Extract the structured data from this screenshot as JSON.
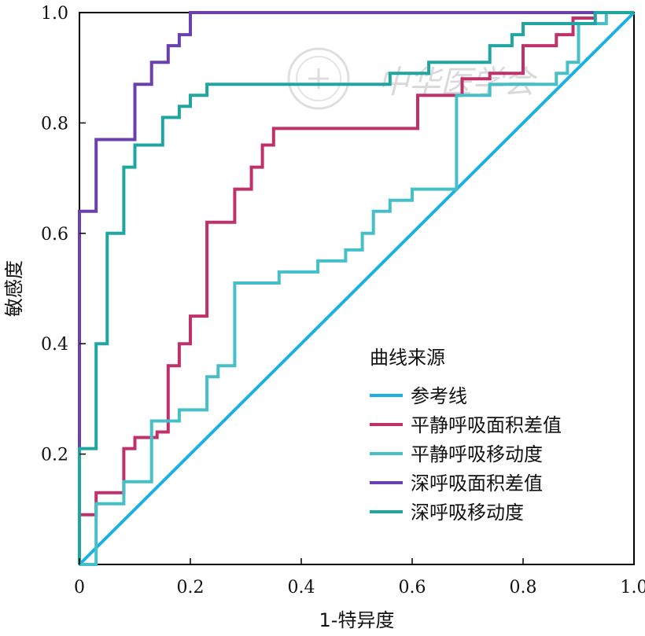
{
  "chart_data": {
    "type": "line",
    "xlabel": "1-特异度",
    "ylabel": "敏感度",
    "xlim": [
      0,
      1
    ],
    "ylim": [
      0,
      1
    ],
    "x_ticks": [
      0,
      0.2,
      0.4,
      0.6,
      0.8,
      1.0
    ],
    "x_tick_labels": [
      "0",
      "0.2",
      "0.4",
      "0.6",
      "0.8",
      "1.0"
    ],
    "y_ticks": [
      0.2,
      0.4,
      0.6,
      0.8,
      1.0
    ],
    "y_tick_labels": [
      "0.2",
      "0.4",
      "0.6",
      "0.8",
      "1.0"
    ],
    "grid": false,
    "legend": {
      "title": "曲线来源",
      "position": "lower-right"
    },
    "watermark": "中华医学会",
    "series": [
      {
        "name": "参考线",
        "color": "#1ab0e6",
        "points": [
          [
            0,
            0
          ],
          [
            1,
            1
          ]
        ]
      },
      {
        "name": "平静呼吸面积差值",
        "color": "#c0306a",
        "points": [
          [
            0,
            0.09
          ],
          [
            0.03,
            0.09
          ],
          [
            0.03,
            0.13
          ],
          [
            0.08,
            0.13
          ],
          [
            0.08,
            0.21
          ],
          [
            0.1,
            0.21
          ],
          [
            0.1,
            0.23
          ],
          [
            0.14,
            0.23
          ],
          [
            0.14,
            0.24
          ],
          [
            0.16,
            0.24
          ],
          [
            0.16,
            0.36
          ],
          [
            0.18,
            0.36
          ],
          [
            0.18,
            0.4
          ],
          [
            0.2,
            0.4
          ],
          [
            0.2,
            0.45
          ],
          [
            0.23,
            0.45
          ],
          [
            0.23,
            0.62
          ],
          [
            0.28,
            0.62
          ],
          [
            0.28,
            0.68
          ],
          [
            0.31,
            0.68
          ],
          [
            0.31,
            0.72
          ],
          [
            0.33,
            0.72
          ],
          [
            0.33,
            0.76
          ],
          [
            0.35,
            0.76
          ],
          [
            0.35,
            0.79
          ],
          [
            0.61,
            0.79
          ],
          [
            0.61,
            0.85
          ],
          [
            0.69,
            0.85
          ],
          [
            0.69,
            0.88
          ],
          [
            0.74,
            0.88
          ],
          [
            0.74,
            0.89
          ],
          [
            0.8,
            0.89
          ],
          [
            0.8,
            0.94
          ],
          [
            0.86,
            0.94
          ],
          [
            0.86,
            0.96
          ],
          [
            0.89,
            0.96
          ],
          [
            0.89,
            0.99
          ],
          [
            0.93,
            0.99
          ],
          [
            0.93,
            1.0
          ],
          [
            1,
            1
          ]
        ]
      },
      {
        "name": "平静呼吸移动度",
        "color": "#45bfc8",
        "points": [
          [
            0,
            0
          ],
          [
            0.03,
            0
          ],
          [
            0.03,
            0.11
          ],
          [
            0.08,
            0.11
          ],
          [
            0.08,
            0.15
          ],
          [
            0.13,
            0.15
          ],
          [
            0.13,
            0.26
          ],
          [
            0.18,
            0.26
          ],
          [
            0.18,
            0.28
          ],
          [
            0.23,
            0.28
          ],
          [
            0.23,
            0.34
          ],
          [
            0.25,
            0.34
          ],
          [
            0.25,
            0.36
          ],
          [
            0.28,
            0.36
          ],
          [
            0.28,
            0.51
          ],
          [
            0.36,
            0.51
          ],
          [
            0.36,
            0.53
          ],
          [
            0.43,
            0.53
          ],
          [
            0.43,
            0.55
          ],
          [
            0.48,
            0.55
          ],
          [
            0.48,
            0.57
          ],
          [
            0.51,
            0.57
          ],
          [
            0.51,
            0.6
          ],
          [
            0.53,
            0.6
          ],
          [
            0.53,
            0.64
          ],
          [
            0.56,
            0.64
          ],
          [
            0.56,
            0.66
          ],
          [
            0.6,
            0.66
          ],
          [
            0.6,
            0.68
          ],
          [
            0.68,
            0.68
          ],
          [
            0.68,
            0.85
          ],
          [
            0.74,
            0.85
          ],
          [
            0.74,
            0.87
          ],
          [
            0.86,
            0.87
          ],
          [
            0.86,
            0.89
          ],
          [
            0.88,
            0.89
          ],
          [
            0.88,
            0.91
          ],
          [
            0.9,
            0.91
          ],
          [
            0.9,
            0.98
          ],
          [
            0.95,
            0.98
          ],
          [
            0.95,
            1.0
          ],
          [
            1,
            1
          ]
        ]
      },
      {
        "name": "深呼吸面积差值",
        "color": "#6a3fb0",
        "points": [
          [
            0,
            0.21
          ],
          [
            0,
            0.64
          ],
          [
            0.03,
            0.64
          ],
          [
            0.03,
            0.77
          ],
          [
            0.1,
            0.77
          ],
          [
            0.1,
            0.87
          ],
          [
            0.13,
            0.87
          ],
          [
            0.13,
            0.91
          ],
          [
            0.16,
            0.91
          ],
          [
            0.16,
            0.94
          ],
          [
            0.18,
            0.94
          ],
          [
            0.18,
            0.96
          ],
          [
            0.2,
            0.96
          ],
          [
            0.2,
            1.0
          ],
          [
            1,
            1
          ]
        ]
      },
      {
        "name": "深呼吸移动度",
        "color": "#1fa6a0",
        "points": [
          [
            0,
            0
          ],
          [
            0,
            0.21
          ],
          [
            0.03,
            0.21
          ],
          [
            0.03,
            0.4
          ],
          [
            0.05,
            0.4
          ],
          [
            0.05,
            0.6
          ],
          [
            0.08,
            0.6
          ],
          [
            0.08,
            0.72
          ],
          [
            0.1,
            0.72
          ],
          [
            0.1,
            0.76
          ],
          [
            0.15,
            0.76
          ],
          [
            0.15,
            0.81
          ],
          [
            0.18,
            0.81
          ],
          [
            0.18,
            0.83
          ],
          [
            0.2,
            0.83
          ],
          [
            0.2,
            0.85
          ],
          [
            0.23,
            0.85
          ],
          [
            0.23,
            0.87
          ],
          [
            0.56,
            0.87
          ],
          [
            0.56,
            0.89
          ],
          [
            0.63,
            0.89
          ],
          [
            0.63,
            0.91
          ],
          [
            0.74,
            0.91
          ],
          [
            0.74,
            0.94
          ],
          [
            0.78,
            0.94
          ],
          [
            0.78,
            0.96
          ],
          [
            0.8,
            0.96
          ],
          [
            0.8,
            0.98
          ],
          [
            0.93,
            0.98
          ],
          [
            0.93,
            1.0
          ],
          [
            1,
            1
          ]
        ]
      }
    ]
  }
}
